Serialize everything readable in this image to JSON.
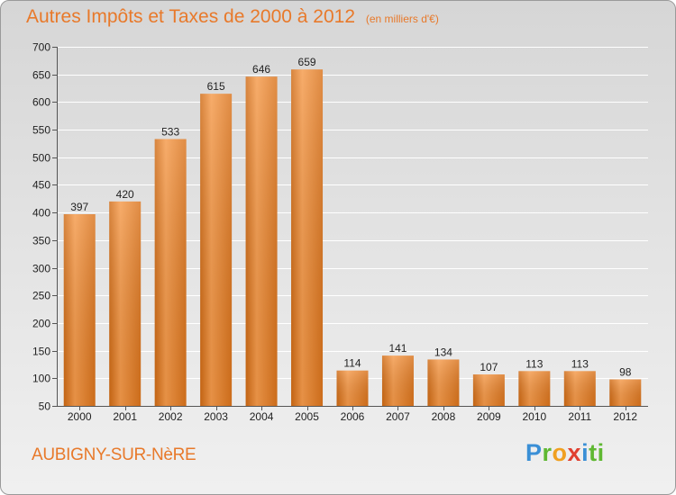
{
  "chart_data": {
    "type": "bar",
    "title": "Autres Impôts et Taxes de 2000 à 2012",
    "subtitle": "(en milliers d'€)",
    "categories": [
      "2000",
      "2001",
      "2002",
      "2003",
      "2004",
      "2005",
      "2006",
      "2007",
      "2008",
      "2009",
      "2010",
      "2011",
      "2012"
    ],
    "values": [
      397,
      420,
      533,
      615,
      646,
      659,
      114,
      141,
      134,
      107,
      113,
      113,
      98
    ],
    "ylim": [
      50,
      700
    ],
    "yticks": [
      50,
      100,
      150,
      200,
      250,
      300,
      350,
      400,
      450,
      500,
      550,
      600,
      650,
      700
    ],
    "grid": true,
    "bar_color": "#e8832e"
  },
  "location": "AUBIGNY-SUR-NèRE",
  "logo_letters": [
    "P",
    "r",
    "o",
    "x",
    "i",
    "ti"
  ]
}
